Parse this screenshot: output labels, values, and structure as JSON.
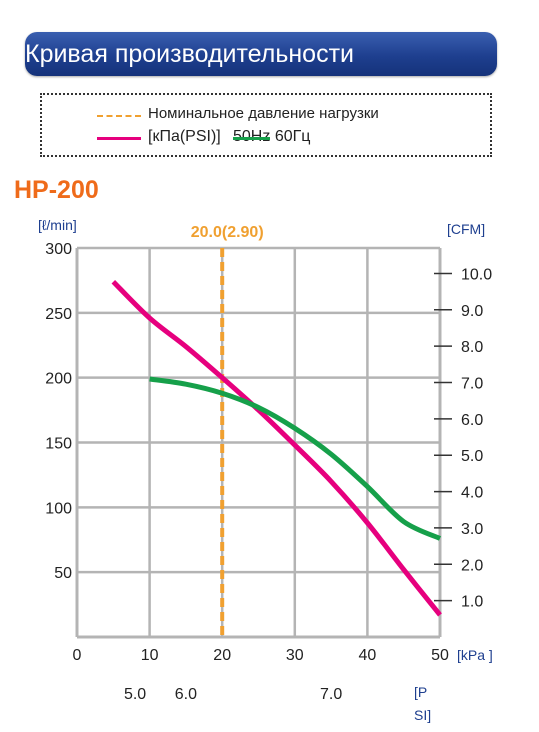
{
  "banner": {
    "title": "Кривая производительности"
  },
  "legend": {
    "rated_pressure": "Номинальное давление нагрузки",
    "units_line": "[кПа(PSI)]",
    "freq_50": "50Hz",
    "freq_60": "60Гц"
  },
  "model": "HP-200",
  "colors": {
    "rated": "#f0a030",
    "series_50hz": "#e6007e",
    "series_60hz": "#16a04a",
    "grid": "#b4b4b4"
  },
  "chart_data": {
    "type": "line",
    "title": "",
    "left_axis_label": "[ℓ/min]",
    "right_axis_label": "[CFM]",
    "x_unit_label": "[kPa ]",
    "psi_label": [
      "[P",
      "SI]"
    ],
    "xlim": [
      0,
      50
    ],
    "ylim": [
      0,
      300
    ],
    "y2lim": [
      0,
      10.7
    ],
    "x_ticks": [
      0,
      10,
      20,
      30,
      40,
      50
    ],
    "x_tick_labels": [
      "0",
      "10",
      "20",
      "30",
      "40",
      "50"
    ],
    "y_ticks": [
      50,
      100,
      150,
      200,
      250,
      300
    ],
    "y_tick_labels": [
      "50",
      "100",
      "150",
      "200",
      "250",
      "300"
    ],
    "y2_ticks": [
      1,
      2,
      3,
      4,
      5,
      6,
      7,
      8,
      9,
      10
    ],
    "y2_tick_labels": [
      "1.0",
      "2.0",
      "3.0",
      "4.0",
      "5.0",
      "6.0",
      "7.0",
      "8.0",
      "9.0",
      "10.0"
    ],
    "psi_ticks": [
      {
        "kpa": 8,
        "label": "5.0"
      },
      {
        "kpa": 15,
        "label": "6.0"
      },
      {
        "kpa": 35,
        "label": "7.0"
      }
    ],
    "rated_line": {
      "x": 20,
      "label": "20.0(2.90)"
    },
    "grid": true,
    "series": [
      {
        "name": "50Hz",
        "values": [
          [
            5,
            274
          ],
          [
            10,
            246
          ],
          [
            15,
            224
          ],
          [
            20,
            200
          ],
          [
            25,
            175
          ],
          [
            30,
            148
          ],
          [
            35,
            120
          ],
          [
            40,
            88
          ],
          [
            45,
            52
          ],
          [
            50,
            17
          ]
        ]
      },
      {
        "name": "60Гц",
        "values": [
          [
            10,
            199
          ],
          [
            15,
            195
          ],
          [
            20,
            188
          ],
          [
            25,
            177
          ],
          [
            30,
            161
          ],
          [
            35,
            141
          ],
          [
            40,
            116
          ],
          [
            45,
            89
          ],
          [
            50,
            76
          ]
        ]
      }
    ]
  }
}
